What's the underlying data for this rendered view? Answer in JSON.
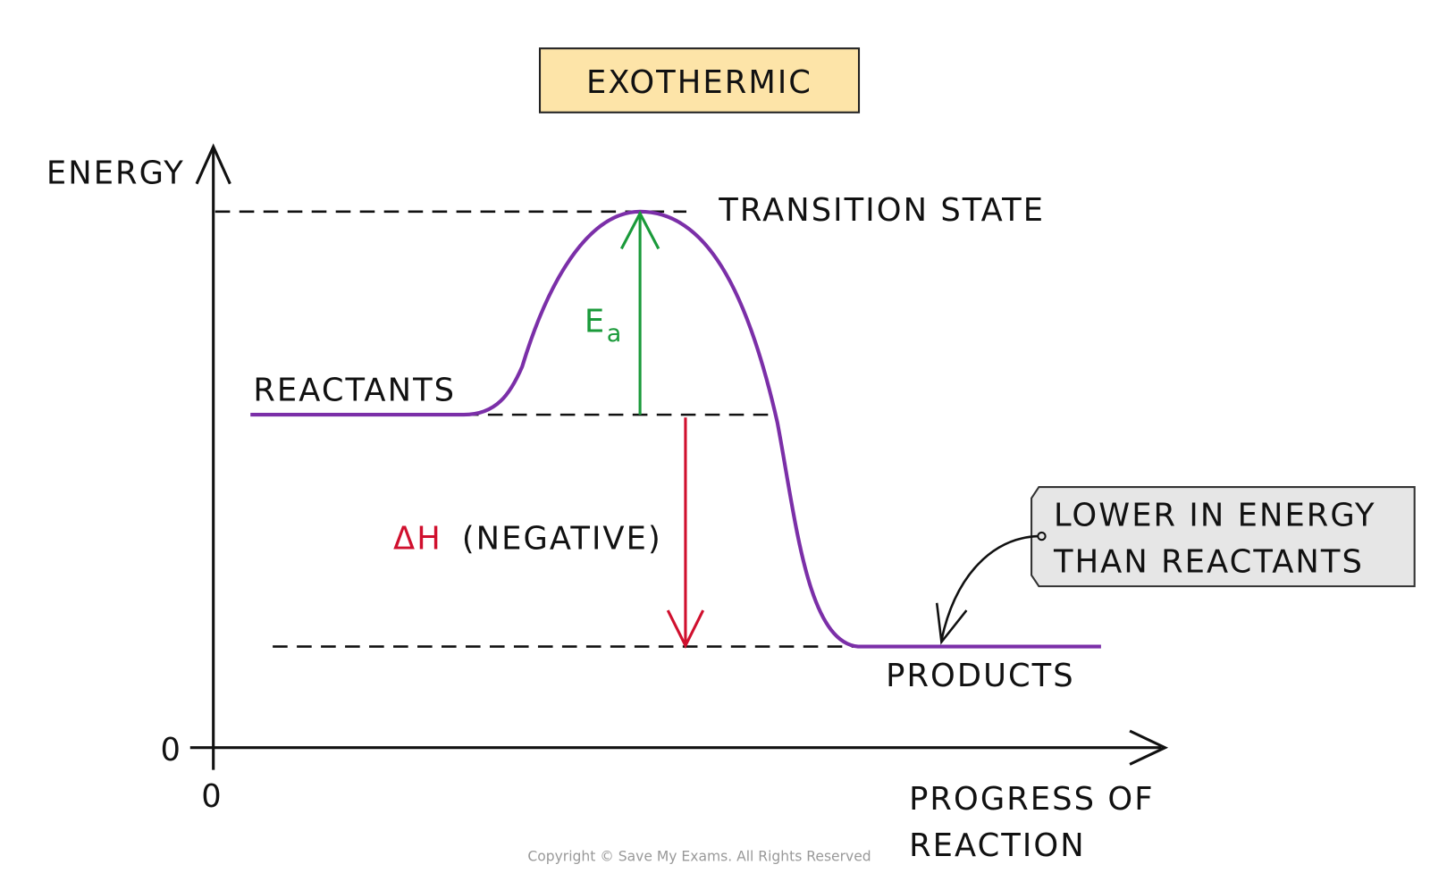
{
  "title": "EXOTHERMIC",
  "axes": {
    "y_label": "ENERGY",
    "x_label_line1": "PROGRESS OF",
    "x_label_line2": "REACTION",
    "y_origin": "0",
    "x_origin": "0"
  },
  "levels": {
    "transition_state": "TRANSITION STATE",
    "reactants": "REACTANTS",
    "products": "PRODUCTS"
  },
  "activation_energy": {
    "symbol": "E",
    "subscript": "a"
  },
  "enthalpy_change": {
    "symbol": "ΔH",
    "note": "(NEGATIVE)"
  },
  "callout": {
    "line1": "LOWER IN ENERGY",
    "line2": "THAN REACTANTS"
  },
  "copyright": "Copyright © Save My Exams. All Rights Reserved"
}
